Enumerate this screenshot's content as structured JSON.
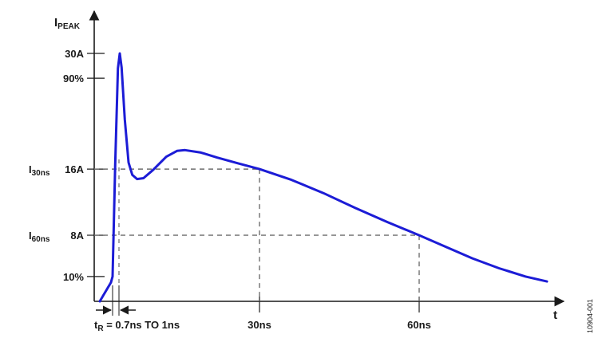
{
  "chart_data": {
    "type": "line",
    "y_axis_title": "I",
    "y_axis_title_sub": "PEAK",
    "x_axis_title": "t",
    "y_ticks": [
      {
        "label": "30A",
        "value": 30
      },
      {
        "label": "90%",
        "value": 27
      },
      {
        "label": "16A",
        "value": 16,
        "prefix": "I",
        "prefix_sub": "30ns"
      },
      {
        "label": "8A",
        "value": 8,
        "prefix": "I",
        "prefix_sub": "60ns"
      },
      {
        "label": "10%",
        "value": 3
      }
    ],
    "x_ticks": [
      {
        "label": "30ns",
        "value": 30
      },
      {
        "label": "60ns",
        "value": 60
      }
    ],
    "rise_time_label": {
      "t": "t",
      "t_sub": "R",
      "text": " = 0.7ns TO 1ns"
    },
    "reference_lines": [
      {
        "x": 30,
        "y": 16
      },
      {
        "x": 60,
        "y": 8
      }
    ],
    "series": [
      {
        "color": "#1c1cd6",
        "points": [
          [
            0,
            0
          ],
          [
            2.1,
            2.3
          ],
          [
            2.4,
            3.0
          ],
          [
            2.9,
            16.6
          ],
          [
            3.4,
            28.2
          ],
          [
            3.75,
            30.0
          ],
          [
            4.1,
            28.3
          ],
          [
            4.7,
            22.0
          ],
          [
            5.4,
            16.8
          ],
          [
            6.1,
            15.3
          ],
          [
            7.0,
            14.8
          ],
          [
            8.2,
            14.9
          ],
          [
            10.0,
            15.9
          ],
          [
            12.5,
            17.5
          ],
          [
            14.5,
            18.2
          ],
          [
            16.0,
            18.3
          ],
          [
            19.0,
            18.0
          ],
          [
            22.0,
            17.4
          ],
          [
            26.0,
            16.7
          ],
          [
            30.0,
            16.0
          ],
          [
            36.0,
            14.7
          ],
          [
            42.0,
            13.1
          ],
          [
            48.0,
            11.3
          ],
          [
            54.0,
            9.6
          ],
          [
            60.0,
            8.0
          ],
          [
            65.0,
            6.6
          ],
          [
            70.0,
            5.2
          ],
          [
            75.0,
            4.0
          ],
          [
            80.0,
            3.0
          ],
          [
            84.0,
            2.4
          ]
        ]
      }
    ],
    "figure_id": "10904-001"
  }
}
